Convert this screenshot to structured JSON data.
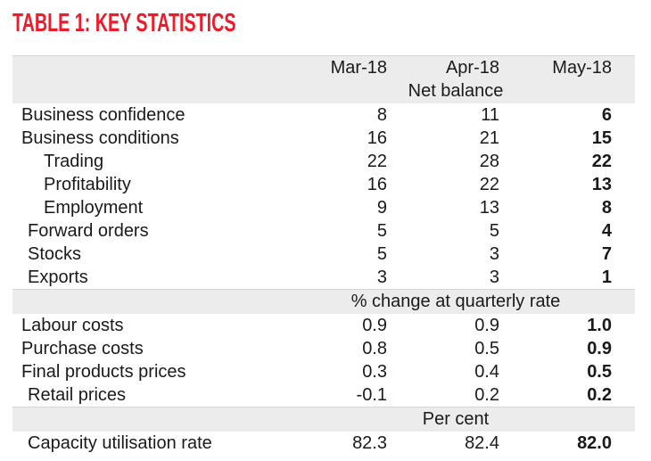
{
  "title": "TABLE 1: KEY STATISTICS",
  "theme": {
    "accent_red": "#ed1c2b",
    "band_gray": "#ececec",
    "text_color": "#1a1a1a"
  },
  "table": {
    "columns": [
      "Mar-18",
      "Apr-18",
      "May-18"
    ],
    "sections": [
      {
        "header": "Net balance",
        "rows": [
          {
            "label": "Business confidence",
            "indent": 0,
            "values": [
              "8",
              "11",
              "6"
            ]
          },
          {
            "label": "Business conditions",
            "indent": 0,
            "values": [
              "16",
              "21",
              "15"
            ]
          },
          {
            "label": "Trading",
            "indent": 2,
            "values": [
              "22",
              "28",
              "22"
            ]
          },
          {
            "label": "Profitability",
            "indent": 2,
            "values": [
              "16",
              "22",
              "13"
            ]
          },
          {
            "label": "Employment",
            "indent": 2,
            "values": [
              "9",
              "13",
              "8"
            ]
          },
          {
            "label": "Forward orders",
            "indent": 1,
            "values": [
              "5",
              "5",
              "4"
            ]
          },
          {
            "label": "Stocks",
            "indent": 1,
            "values": [
              "5",
              "3",
              "7"
            ]
          },
          {
            "label": "Exports",
            "indent": 1,
            "values": [
              "3",
              "3",
              "1"
            ]
          }
        ]
      },
      {
        "header": "% change at quarterly rate",
        "rows": [
          {
            "label": "Labour costs",
            "indent": 0,
            "values": [
              "0.9",
              "0.9",
              "1.0"
            ]
          },
          {
            "label": "Purchase costs",
            "indent": 0,
            "values": [
              "0.8",
              "0.5",
              "0.9"
            ]
          },
          {
            "label": "Final products prices",
            "indent": 0,
            "values": [
              "0.3",
              "0.4",
              "0.5"
            ]
          },
          {
            "label": "Retail prices",
            "indent": 1,
            "values": [
              "-0.1",
              "0.2",
              "0.2"
            ]
          }
        ]
      },
      {
        "header": "Per cent",
        "rows": [
          {
            "label": "Capacity utilisation rate",
            "indent": 1,
            "values": [
              "82.3",
              "82.4",
              "82.0"
            ]
          }
        ]
      }
    ]
  }
}
